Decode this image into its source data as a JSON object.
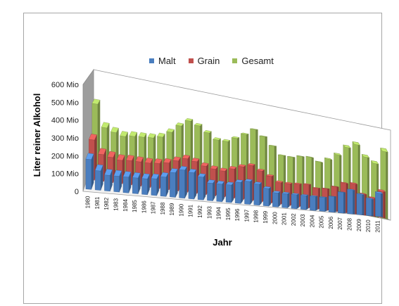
{
  "chart_data": {
    "type": "bar",
    "xlabel": "Jahr",
    "ylabel": "Liter reiner Alkohol",
    "ylim": [
      0,
      600
    ],
    "yticks": [
      "0",
      "100 Mio",
      "200 Mio",
      "300 Mio",
      "400 Mio",
      "500 Mio",
      "600 Mio"
    ],
    "categories": [
      "1980",
      "1981",
      "1982",
      "1983",
      "1984",
      "1985",
      "1986",
      "1987",
      "1988",
      "1989",
      "1990",
      "1991",
      "1992",
      "1993",
      "1994",
      "1995",
      "1996",
      "1997",
      "1998",
      "1999",
      "2000",
      "2001",
      "2002",
      "2003",
      "2004",
      "2005",
      "2006",
      "2007",
      "2008",
      "2009",
      "2010",
      "2011"
    ],
    "series": [
      {
        "name": "Malt",
        "color": "#4a7ebf",
        "values": [
          170,
          110,
          90,
          90,
          90,
          90,
          90,
          95,
          110,
          140,
          160,
          150,
          130,
          100,
          100,
          100,
          120,
          130,
          120,
          100,
          80,
          80,
          80,
          80,
          80,
          80,
          90,
          120,
          140,
          120,
          100,
          140
        ]
      },
      {
        "name": "Grain",
        "color": "#c0504d",
        "values": [
          240,
          160,
          150,
          140,
          145,
          145,
          145,
          150,
          160,
          180,
          200,
          190,
          170,
          160,
          155,
          175,
          195,
          210,
          185,
          160,
          130,
          130,
          135,
          140,
          125,
          130,
          150,
          180,
          185,
          130,
          115,
          165
        ]
      },
      {
        "name": "Gesamt",
        "color": "#9bbb59",
        "values": [
          420,
          280,
          260,
          245,
          255,
          260,
          265,
          280,
          320,
          370,
          410,
          390,
          355,
          320,
          320,
          350,
          385,
          425,
          390,
          340,
          290,
          290,
          305,
          310,
          290,
          320,
          360,
          420,
          450,
          380,
          350,
          440
        ]
      }
    ],
    "legend_position": "top",
    "grid": false
  }
}
